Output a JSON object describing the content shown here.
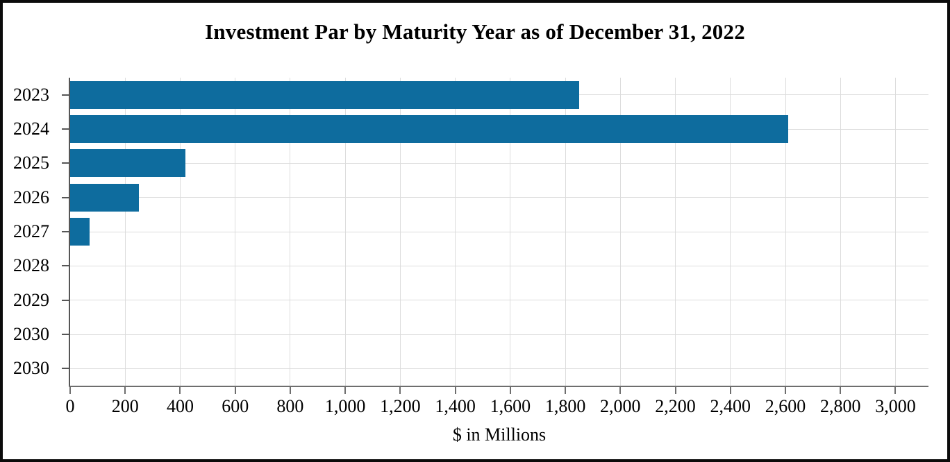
{
  "figure": {
    "border_color": "#0b0b0b",
    "background": "#ffffff"
  },
  "chart_data": {
    "type": "bar",
    "orientation": "horizontal",
    "title": "Investment Par by Maturity Year as of December 31, 2022",
    "xlabel": "$ in Millions",
    "ylabel": "",
    "categories": [
      "2023",
      "2024",
      "2025",
      "2026",
      "2027",
      "2028",
      "2029",
      "2030",
      "2030"
    ],
    "values": [
      1850,
      2610,
      420,
      250,
      70,
      0,
      0,
      0,
      0
    ],
    "xlim": [
      0,
      3120
    ],
    "x_ticks": [
      0,
      200,
      400,
      600,
      800,
      1000,
      1200,
      1400,
      1600,
      1800,
      2000,
      2200,
      2400,
      2600,
      2800,
      3000
    ],
    "x_tick_labels": [
      "0",
      "200",
      "400",
      "600",
      "800",
      "1,000",
      "1,200",
      "1,400",
      "1,600",
      "1,800",
      "2,000",
      "2,200",
      "2,400",
      "2,600",
      "2,800",
      "3,000"
    ],
    "grid": "both",
    "legend": "none",
    "bar_color": "#0e6c9e",
    "gridline_color": "#dcdcdc",
    "axis_color": "#565656"
  }
}
